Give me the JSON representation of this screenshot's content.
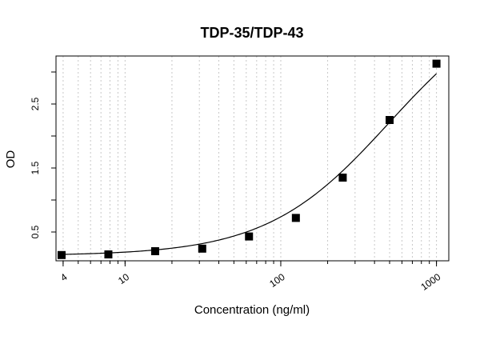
{
  "chart_data": {
    "type": "scatter",
    "title": "TDP-35/TDP-43",
    "xlabel": "Concentration (ng/ml)",
    "ylabel": "OD",
    "x_scale": "log",
    "xlim": [
      3.6,
      1200
    ],
    "ylim": [
      0.05,
      3.25
    ],
    "grid": "vertical dotted",
    "x_ticks": [
      4,
      10,
      100,
      1000
    ],
    "x_tick_labels": [
      "4",
      "10",
      "100",
      "1000"
    ],
    "y_ticks": [
      0.5,
      1.5,
      2.5
    ],
    "y_tick_labels": [
      "0.5",
      "1.5",
      "2.5"
    ],
    "series": [
      {
        "x": [
          3.91,
          7.81,
          15.6,
          31.3,
          62.5,
          125,
          250,
          500,
          1000
        ],
        "y": [
          0.14,
          0.15,
          0.2,
          0.24,
          0.43,
          0.72,
          1.35,
          2.25,
          3.13
        ]
      }
    ]
  }
}
